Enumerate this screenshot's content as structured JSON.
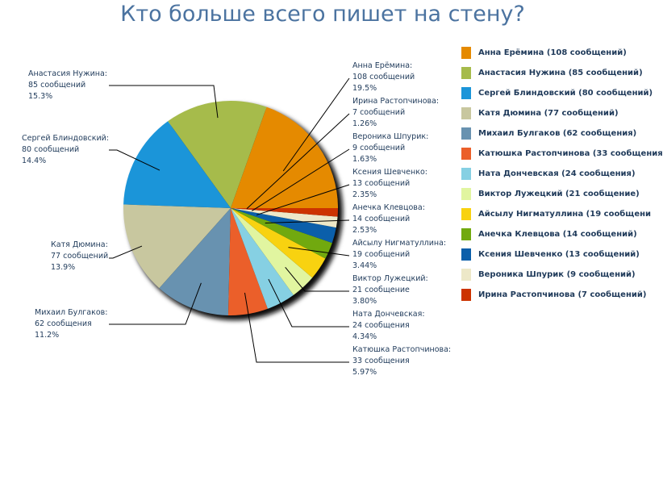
{
  "chart_data": {
    "type": "pie",
    "title": "Кто больше всего пишет на стену?",
    "start_angle": "east, counterclockwise",
    "slices": [
      {
        "name": "Анна Ерёмина",
        "value": 108,
        "unit": "сообщений",
        "percent": "19.5%",
        "legend": "Анна Ерёмина (108 сообщений)",
        "color": "#e58a00"
      },
      {
        "name": "Анастасия Нужина",
        "value": 85,
        "unit": "сообщений",
        "percent": "15.3%",
        "legend": "Анастасия Нужина (85 сообщений)",
        "color": "#a6bb4b"
      },
      {
        "name": "Сергей Блиндовский",
        "value": 80,
        "unit": "сообщений",
        "percent": "14.4%",
        "legend": "Сергей Блиндовский (80 сообщений)",
        "color": "#1b95d9"
      },
      {
        "name": "Катя Дюмина",
        "value": 77,
        "unit": "сообщений",
        "percent": "13.9%",
        "legend": "Катя Дюмина (77 сообщений)",
        "color": "#c8c79f"
      },
      {
        "name": "Михаил Булгаков",
        "value": 62,
        "unit": "сообщения",
        "percent": "11.2%",
        "legend": "Михаил Булгаков (62 сообщения)",
        "color": "#6892b0"
      },
      {
        "name": "Катюшка Растопчинова",
        "value": 33,
        "unit": "сообщения",
        "percent": "5.97%",
        "legend": "Катюшка Растопчинова (33 сообщения",
        "color": "#eb5f2a"
      },
      {
        "name": "Ната Дончевская",
        "value": 24,
        "unit": "сообщения",
        "percent": "4.34%",
        "legend": "Ната Дончевская (24 сообщения)",
        "color": "#86d0e3"
      },
      {
        "name": "Виктор Лужецкий",
        "value": 21,
        "unit": "сообщение",
        "percent": "3.80%",
        "legend": "Виктор Лужецкий (21 сообщение)",
        "color": "#e1f5a0"
      },
      {
        "name": "Айсылу Нигматуллина",
        "value": 19,
        "unit": "сообщений",
        "percent": "3.44%",
        "legend": "Айсылу Нигматуллина (19 сообщени",
        "color": "#f8d210"
      },
      {
        "name": "Анечка Клевцова",
        "value": 14,
        "unit": "сообщений",
        "percent": "2.53%",
        "legend": "Анечка Клевцова (14 сообщений)",
        "color": "#71a90f"
      },
      {
        "name": "Ксения Шевченко",
        "value": 13,
        "unit": "сообщений",
        "percent": "2.35%",
        "legend": "Ксения Шевченко (13 сообщений)",
        "color": "#0b5faa"
      },
      {
        "name": "Вероника Шпурик",
        "value": 9,
        "unit": "сообщений",
        "percent": "1.63%",
        "legend": "Вероника Шпурик (9 сообщений)",
        "color": "#ede8c8"
      },
      {
        "name": "Ирина Растопчинова",
        "value": 7,
        "unit": "сообщений",
        "percent": "1.26%",
        "legend": "Ирина Растопчинова (7 сообщений)",
        "color": "#cc3300"
      }
    ],
    "legend_position": "right"
  }
}
